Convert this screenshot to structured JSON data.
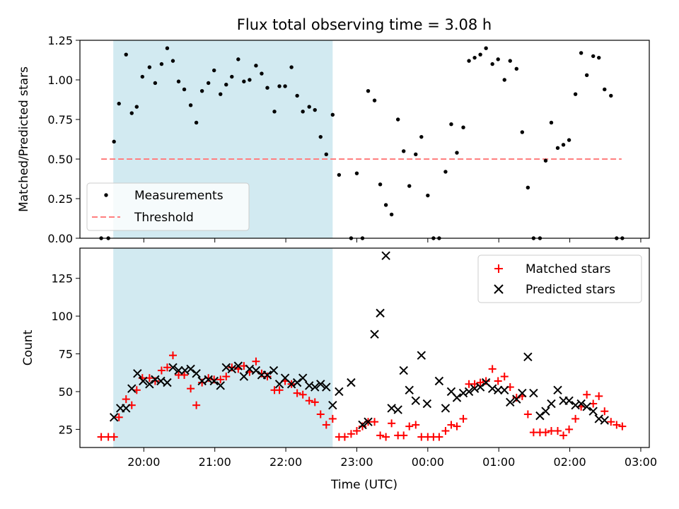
{
  "chart_data": [
    {
      "type": "scatter",
      "title": "Flux total observing time = 3.08 h",
      "ylabel": "Matched/Predicted stars",
      "xlabel": "",
      "xlim": [
        19.1,
        27.12
      ],
      "ylim": [
        0,
        1.25
      ],
      "y_ticks": [
        "0.00",
        "0.25",
        "0.50",
        "0.75",
        "1.00",
        "1.25"
      ],
      "legend_position": "lower-left",
      "shaded_interval": {
        "start": 19.57,
        "end": 22.66,
        "color": "#add8e6"
      },
      "threshold": {
        "name": "Threshold",
        "y": 0.5,
        "x_start": 19.4,
        "x_end": 26.73,
        "color": "#ff7f7f",
        "style": "dashed"
      },
      "series": [
        {
          "name": "Measurements",
          "marker": "dot",
          "color": "#000000",
          "x": [
            19.4,
            19.5,
            19.58,
            19.65,
            19.75,
            19.83,
            19.9,
            19.98,
            20.08,
            20.16,
            20.25,
            20.33,
            20.41,
            20.49,
            20.57,
            20.66,
            20.74,
            20.82,
            20.91,
            20.99,
            21.08,
            21.16,
            21.24,
            21.33,
            21.41,
            21.49,
            21.58,
            21.66,
            21.74,
            21.84,
            21.91,
            21.99,
            22.08,
            22.16,
            22.24,
            22.33,
            22.41,
            22.49,
            22.57,
            22.66,
            22.75,
            22.92,
            23.0,
            23.08,
            23.16,
            23.25,
            23.33,
            23.41,
            23.49,
            23.58,
            23.66,
            23.74,
            23.83,
            23.91,
            24.0,
            24.08,
            24.16,
            24.25,
            24.33,
            24.41,
            24.5,
            24.58,
            24.66,
            24.74,
            24.82,
            24.91,
            24.99,
            25.08,
            25.16,
            25.25,
            25.33,
            25.41,
            25.49,
            25.58,
            25.66,
            25.74,
            25.83,
            25.91,
            25.99,
            26.08,
            26.16,
            26.24,
            26.33,
            26.41,
            26.49,
            26.58,
            26.66,
            26.74
          ],
          "y": [
            0.0,
            0.0,
            0.61,
            0.85,
            1.16,
            0.79,
            0.83,
            1.02,
            1.08,
            0.98,
            1.1,
            1.2,
            1.12,
            0.99,
            0.94,
            0.84,
            0.73,
            0.93,
            0.98,
            1.06,
            0.91,
            0.97,
            1.02,
            1.13,
            0.99,
            1.0,
            1.09,
            1.04,
            0.95,
            0.8,
            0.96,
            0.96,
            1.08,
            0.9,
            0.8,
            0.83,
            0.81,
            0.64,
            0.53,
            0.78,
            0.4,
            0.0,
            0.41,
            0.0,
            0.93,
            0.87,
            0.34,
            0.21,
            0.15,
            0.75,
            0.55,
            0.33,
            0.53,
            0.64,
            0.27,
            0.0,
            0.0,
            0.42,
            0.72,
            0.54,
            0.7,
            1.12,
            1.14,
            1.16,
            1.2,
            1.1,
            1.13,
            1.0,
            1.12,
            1.07,
            0.67,
            0.32,
            0.0,
            0.0,
            0.49,
            0.73,
            0.57,
            0.59,
            0.62,
            0.91,
            1.17,
            1.03,
            1.15,
            1.14,
            0.94,
            0.9,
            0.0,
            0.0
          ]
        }
      ]
    },
    {
      "type": "scatter",
      "title": "",
      "xlabel": "Time (UTC)",
      "ylabel": "Count",
      "xlim": [
        19.1,
        27.12
      ],
      "ylim": [
        13,
        145
      ],
      "y_ticks": [
        "25",
        "50",
        "75",
        "100",
        "125"
      ],
      "x_ticks": [
        "20:00",
        "21:00",
        "22:00",
        "23:00",
        "00:00",
        "01:00",
        "02:00",
        "03:00"
      ],
      "legend_position": "upper-right",
      "shaded_interval": {
        "start": 19.57,
        "end": 22.66,
        "color": "#add8e6"
      },
      "series": [
        {
          "name": "Matched stars",
          "marker": "plus",
          "color": "#ff0000",
          "x": [
            19.4,
            19.5,
            19.58,
            19.65,
            19.75,
            19.83,
            19.9,
            19.98,
            20.08,
            20.16,
            20.25,
            20.33,
            20.41,
            20.49,
            20.57,
            20.66,
            20.74,
            20.82,
            20.91,
            20.99,
            21.08,
            21.16,
            21.24,
            21.33,
            21.41,
            21.49,
            21.58,
            21.66,
            21.74,
            21.84,
            21.91,
            21.99,
            22.08,
            22.16,
            22.24,
            22.33,
            22.41,
            22.49,
            22.57,
            22.66,
            22.75,
            22.83,
            22.92,
            23.0,
            23.08,
            23.16,
            23.25,
            23.33,
            23.41,
            23.49,
            23.58,
            23.66,
            23.74,
            23.83,
            23.91,
            24.0,
            24.08,
            24.16,
            24.25,
            24.33,
            24.41,
            24.5,
            24.58,
            24.66,
            24.74,
            24.82,
            24.91,
            24.99,
            25.08,
            25.16,
            25.25,
            25.33,
            25.41,
            25.49,
            25.58,
            25.66,
            25.74,
            25.83,
            25.91,
            25.99,
            26.08,
            26.16,
            26.24,
            26.33,
            26.41,
            26.49,
            26.58,
            26.66,
            26.74
          ],
          "y": [
            20,
            20,
            20,
            33,
            45,
            41,
            51,
            59,
            59,
            57,
            64,
            66,
            74,
            61,
            61,
            52,
            41,
            56,
            59,
            58,
            58,
            60,
            66,
            65,
            67,
            63,
            70,
            62,
            60,
            51,
            51,
            57,
            55,
            49,
            48,
            44,
            43,
            35,
            28,
            32,
            20,
            20,
            22,
            24,
            27,
            30,
            30,
            21,
            20,
            29,
            21,
            21,
            27,
            28,
            20,
            20,
            20,
            20,
            24,
            28,
            27,
            32,
            55,
            55,
            56,
            57,
            65,
            57,
            60,
            53,
            46,
            47,
            35,
            23,
            23,
            23,
            24,
            24,
            21,
            25,
            32,
            40,
            48,
            42,
            47,
            37,
            30,
            28,
            27
          ]
        },
        {
          "name": "Predicted stars",
          "marker": "x",
          "color": "#000000",
          "x": [
            19.58,
            19.67,
            19.75,
            19.83,
            19.91,
            19.99,
            20.08,
            20.16,
            20.24,
            20.33,
            20.41,
            20.49,
            20.58,
            20.66,
            20.74,
            20.82,
            20.91,
            20.99,
            21.08,
            21.16,
            21.24,
            21.33,
            21.41,
            21.49,
            21.58,
            21.66,
            21.74,
            21.83,
            21.91,
            21.99,
            22.08,
            22.16,
            22.24,
            22.33,
            22.41,
            22.49,
            22.57,
            22.66,
            22.75,
            22.92,
            23.08,
            23.16,
            23.25,
            23.33,
            23.41,
            23.49,
            23.58,
            23.66,
            23.74,
            23.83,
            23.91,
            23.99,
            24.16,
            24.25,
            24.33,
            24.41,
            24.5,
            24.58,
            24.66,
            24.74,
            24.82,
            24.91,
            24.99,
            25.08,
            25.16,
            25.25,
            25.33,
            25.41,
            25.49,
            25.58,
            25.66,
            25.74,
            25.83,
            25.91,
            25.99,
            26.08,
            26.16,
            26.24,
            26.33,
            26.41,
            26.49
          ],
          "y": [
            33,
            39,
            39,
            52,
            62,
            57,
            55,
            58,
            57,
            56,
            66,
            64,
            64,
            65,
            62,
            57,
            58,
            57,
            54,
            66,
            65,
            67,
            60,
            65,
            64,
            61,
            61,
            64,
            55,
            59,
            55,
            56,
            59,
            54,
            53,
            55,
            53,
            41,
            50,
            56,
            28,
            30,
            88,
            102,
            140,
            39,
            38,
            64,
            51,
            44,
            74,
            42,
            57,
            39,
            50,
            46,
            49,
            50,
            52,
            53,
            56,
            52,
            51,
            51,
            43,
            45,
            49,
            73,
            49,
            34,
            37,
            42,
            51,
            44,
            44,
            41,
            42,
            40,
            37,
            32,
            31
          ]
        }
      ]
    }
  ]
}
